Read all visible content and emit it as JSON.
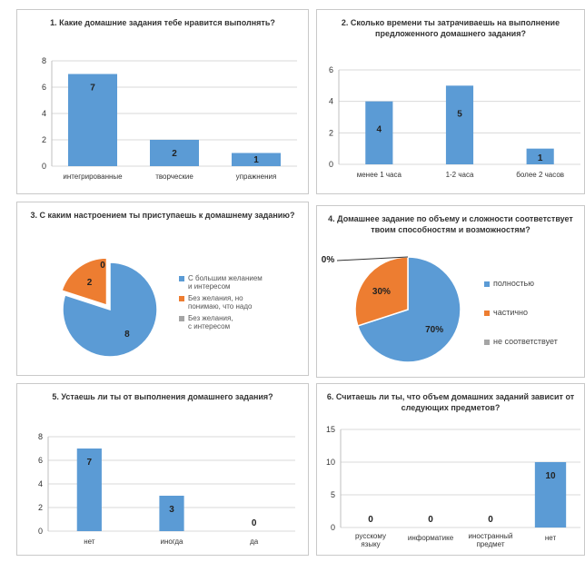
{
  "chart_data": [
    {
      "type": "bar",
      "title": "1. Какие домашние задания тебе нравится выполнять?",
      "categories": [
        "интегрированные",
        "творческие",
        "упражнения"
      ],
      "values": [
        7,
        2,
        1
      ],
      "ylim": [
        0,
        8
      ],
      "yticks": [
        0,
        2,
        4,
        6,
        8
      ],
      "color": "#5b9bd5"
    },
    {
      "type": "bar",
      "title": "2. Сколько времени ты затрачиваешь на выполнение предложенного домашнего задания?",
      "categories": [
        "менее 1 часа",
        "1-2 часа",
        "более 2 часов"
      ],
      "values": [
        4,
        5,
        1
      ],
      "ylim": [
        0,
        6
      ],
      "yticks": [
        0,
        2,
        4,
        6
      ],
      "color": "#5b9bd5"
    },
    {
      "type": "pie",
      "title": "3. С каким настроением ты приступаешь к домашнему заданию?",
      "labels": [
        "С большим желанием и интересом",
        "Без желания, но понимаю, что надо",
        "Без желания, с интересом"
      ],
      "values": [
        8,
        2,
        0
      ],
      "colors": [
        "#5b9bd5",
        "#ed7d31",
        "#a5a5a5"
      ]
    },
    {
      "type": "pie",
      "title": "4. Домашнее задание по объему и сложности соответствует твоим способностям и возможностям?",
      "labels": [
        "полностью",
        "частично",
        "не соответствует"
      ],
      "values": [
        70,
        30,
        0
      ],
      "data_labels": [
        "70%",
        "30%",
        "0%"
      ],
      "colors": [
        "#5b9bd5",
        "#ed7d31",
        "#a5a5a5"
      ]
    },
    {
      "type": "bar",
      "title": "5. Устаешь ли ты от выполнения домашнего задания?",
      "categories": [
        "нет",
        "иногда",
        "да"
      ],
      "values": [
        7,
        3,
        0
      ],
      "ylim": [
        0,
        8
      ],
      "yticks": [
        0,
        2,
        4,
        6,
        8
      ],
      "color": "#5b9bd5"
    },
    {
      "type": "bar",
      "title": "6. Считаешь ли ты, что объем домашних заданий зависит от следующих предметов?",
      "categories": [
        "русскому языку",
        "информатике",
        "иностранный предмет",
        "нет"
      ],
      "values": [
        0,
        0,
        0,
        10
      ],
      "ylim": [
        0,
        15
      ],
      "yticks": [
        0,
        5,
        10,
        15
      ],
      "color": "#5b9bd5"
    }
  ]
}
